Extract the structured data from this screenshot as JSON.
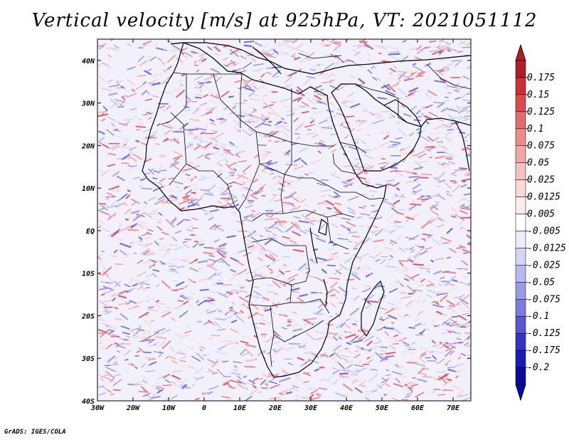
{
  "title": "Vertical velocity [m/s] at 925hPa, VT: 2021051112",
  "footer": "GrADS: IGES/COLA",
  "map": {
    "lon_ticks": [
      "30W",
      "20W",
      "10W",
      "0",
      "10E",
      "20E",
      "30E",
      "40E",
      "50E",
      "60E",
      "70E"
    ],
    "lat_ticks": [
      "40N",
      "30N",
      "20N",
      "10N",
      "EQ",
      "10S",
      "20S",
      "30S",
      "40S"
    ],
    "lon_range": [
      -30,
      75
    ],
    "lat_range": [
      -40,
      45
    ]
  },
  "colorbar": {
    "levels": [
      "0.175",
      "0.15",
      "0.125",
      "0.1",
      "0.075",
      "0.05",
      "0.025",
      "0.0125",
      "0.005",
      "-0.005",
      "-0.0125",
      "-0.025",
      "-0.05",
      "-0.075",
      "-0.1",
      "-0.125",
      "-0.175",
      "-0.2"
    ],
    "colors": [
      "#b01c2a",
      "#cd2e38",
      "#dc4a50",
      "#e46a6e",
      "#ec8a8c",
      "#f2a6a6",
      "#f6c0c0",
      "#fad8d8",
      "#fdeeee",
      "#ffffff",
      "#ececfb",
      "#d4d4f6",
      "#b8b8f0",
      "#9a9ae8",
      "#7a7adf",
      "#5656d2",
      "#3434c4",
      "#1a1ab8",
      "#0a0aa0"
    ]
  }
}
